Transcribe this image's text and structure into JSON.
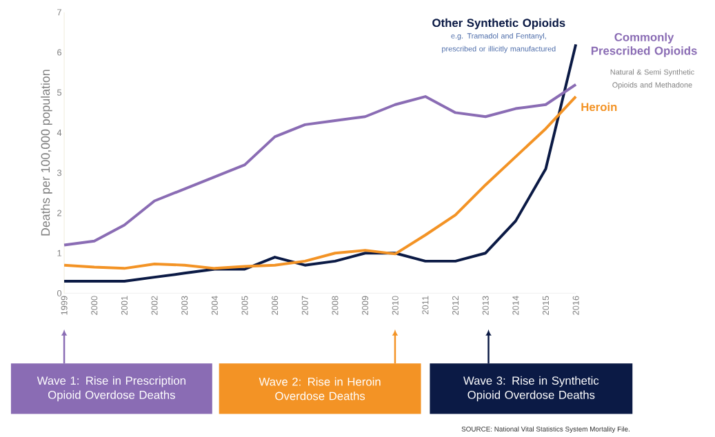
{
  "chart_data": {
    "type": "line",
    "ylabel": "Deaths per 100,000 population",
    "categories": [
      "1999",
      "2000",
      "2001",
      "2002",
      "2003",
      "2004",
      "2005",
      "2006",
      "2007",
      "2008",
      "2009",
      "2010",
      "2011",
      "2012",
      "2013",
      "2014",
      "2015",
      "2016"
    ],
    "series": [
      {
        "name": "Other Synthetic Opioids",
        "color": "#0b1a45",
        "values": [
          0.3,
          0.3,
          0.3,
          0.4,
          0.5,
          0.6,
          0.6,
          0.9,
          0.7,
          0.8,
          1.0,
          1.0,
          0.8,
          0.8,
          1.0,
          1.8,
          3.1,
          6.2
        ]
      },
      {
        "name": "Commonly Prescribed Opioids",
        "color": "#8a6cb4",
        "values": [
          1.2,
          1.3,
          1.7,
          2.3,
          2.6,
          2.9,
          3.2,
          3.9,
          4.2,
          4.3,
          4.4,
          4.7,
          4.9,
          4.5,
          4.4,
          4.6,
          4.7,
          5.2
        ]
      },
      {
        "name": "Heroin",
        "color": "#f39325",
        "values": [
          0.7,
          0.65,
          0.62,
          0.73,
          0.7,
          0.62,
          0.67,
          0.7,
          0.8,
          1.0,
          1.07,
          0.98,
          1.45,
          1.95,
          2.7,
          3.4,
          4.1,
          4.9
        ]
      }
    ],
    "ylim": [
      0,
      7
    ],
    "yticks": [
      0,
      1,
      2,
      3,
      4,
      5,
      6,
      7
    ],
    "grid": false,
    "legend": false,
    "marker": "none",
    "line_style": "solid",
    "annotations": [
      "e.g. Tramadol and Fentanyl, prescribed or illicitly manufactured",
      "Natural & Semi Synthetic Opioids and Methadone",
      "Wave 1: Rise in Prescription Opioid Overdose Deaths",
      "Wave 2: Rise in Heroin Overdose Deaths",
      "Wave 3: Rise in Synthetic Opioid Overdose Deaths",
      "SOURCE: National Vital Statistics System Mortality File."
    ]
  }
}
